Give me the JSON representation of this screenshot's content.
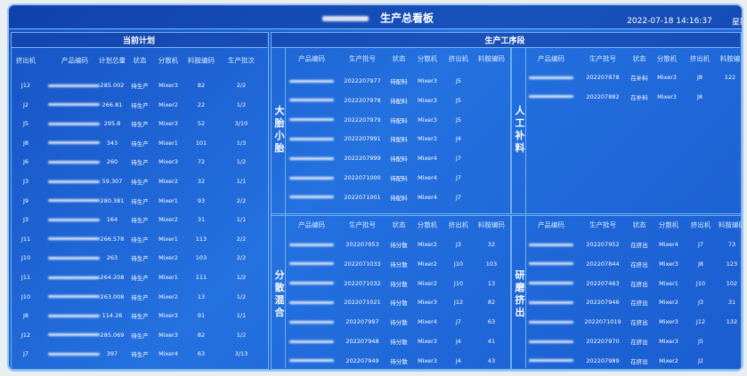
{
  "header": {
    "title": "生产总看板",
    "datetime": "2022-07-18 14:16:37",
    "weekday": "星期-"
  },
  "plan": {
    "title": "当前计划",
    "columns": [
      "挤出机",
      "产品编码",
      "计划总量",
      "状态",
      "分散机",
      "料胺编码",
      "生产批次"
    ],
    "rows": [
      [
        "J12",
        "285.002",
        "待生产",
        "Mixer3",
        "82",
        "2/2"
      ],
      [
        "J2",
        "266.81",
        "待生产",
        "Mixer2",
        "22",
        "1/2"
      ],
      [
        "J5",
        "295.8",
        "待生产",
        "Mixer3",
        "52",
        "3/10"
      ],
      [
        "J8",
        "343",
        "待生产",
        "Mixer1",
        "101",
        "1/3"
      ],
      [
        "J6",
        "260",
        "待生产",
        "Mixer3",
        "72",
        "1/2"
      ],
      [
        "J3",
        "59.307",
        "待生产",
        "Mixer2",
        "32",
        "1/1"
      ],
      [
        "J9",
        "280.381",
        "待生产",
        "Mixer1",
        "93",
        "2/2"
      ],
      [
        "J3",
        "164",
        "待生产",
        "Mixer2",
        "31",
        "1/1"
      ],
      [
        "J11",
        "266.578",
        "待生产",
        "Mixer1",
        "113",
        "2/2"
      ],
      [
        "J10",
        "263",
        "待生产",
        "Mixer2",
        "103",
        "2/2"
      ],
      [
        "J11",
        "264.208",
        "待生产",
        "Mixer1",
        "111",
        "1/2"
      ],
      [
        "J10",
        "263.008",
        "待生产",
        "Mixer2",
        "13",
        "1/2"
      ],
      [
        "J8",
        "114.26",
        "待生产",
        "Mixer3",
        "91",
        "1/1"
      ],
      [
        "J12",
        "285.069",
        "待生产",
        "Mixer3",
        "82",
        "1/2"
      ],
      [
        "J7",
        "397",
        "待生产",
        "Mixer4",
        "63",
        "3/13"
      ]
    ]
  },
  "process": {
    "title": "生产工序段",
    "sections": [
      {
        "label": "大胎小胎",
        "columns": [
          "产品编码",
          "生产批号",
          "状态",
          "分散机",
          "挤出机",
          "料胺编码"
        ],
        "rows": [
          [
            "2022207977",
            "待配料",
            "Mixer3",
            "J5"
          ],
          [
            "2022207978",
            "待配料",
            "Mixer3",
            "J5"
          ],
          [
            "2022207979",
            "待配料",
            "Mixer3",
            "J5"
          ],
          [
            "2022207991",
            "待配料",
            "Mixer3",
            "J4"
          ],
          [
            "2022207999",
            "待配料",
            "Mixer4",
            "J7"
          ],
          [
            "2022071000",
            "待配料",
            "Mixer4",
            "J7"
          ],
          [
            "2022071001",
            "待配料",
            "Mixer4",
            "J7"
          ]
        ]
      },
      {
        "label": "人工补料",
        "columns": [
          "产品编码",
          "生产批号",
          "状态",
          "分散机",
          "挤出机",
          "料胺编"
        ],
        "rows": [
          [
            "202207878",
            "在补料",
            "Mixer3",
            "J8",
            "122"
          ],
          [
            "202207882",
            "在补料",
            "Mixer3",
            "J8"
          ]
        ]
      },
      {
        "label": "分散混合",
        "columns": [
          "产品编码",
          "生产批号",
          "状态",
          "分散机",
          "挤出机",
          "料胺编码"
        ],
        "rows": [
          [
            "202207953",
            "待分散",
            "Mixer2",
            "J3",
            "32"
          ],
          [
            "2022071033",
            "待分散",
            "Mixer2",
            "J10",
            "103"
          ],
          [
            "2022071032",
            "待分散",
            "Mixer2",
            "J10",
            "13"
          ],
          [
            "2022071021",
            "待分散",
            "Mixer3",
            "J12",
            "82"
          ],
          [
            "202207997",
            "待分散",
            "Mixer4",
            "J7",
            "63"
          ],
          [
            "202207948",
            "待分散",
            "Mixer3",
            "J4",
            "41"
          ],
          [
            "202207949",
            "待分散",
            "Mixer3",
            "J4",
            "43"
          ]
        ]
      },
      {
        "label": "研磨挤出",
        "columns": [
          "产品编码",
          "生产批号",
          "状态",
          "分散机",
          "挤出机",
          "料胺编码"
        ],
        "rows": [
          [
            "202207952",
            "在挤出",
            "Mixer4",
            "J7",
            "73"
          ],
          [
            "202207844",
            "在挤出",
            "Mixer3",
            "J8",
            "123"
          ],
          [
            "202207463",
            "在挤出",
            "Mixer1",
            "J10",
            "102"
          ],
          [
            "202207946",
            "在挤出",
            "Mixer2",
            "J3",
            "31"
          ],
          [
            "2022071019",
            "在挤出",
            "Mixer3",
            "J12",
            "132"
          ],
          [
            "202207970",
            "在挤出",
            "Mixer3",
            "J5"
          ],
          [
            "202207989",
            "在挤出",
            "Mixer2",
            "J2"
          ]
        ]
      }
    ]
  }
}
